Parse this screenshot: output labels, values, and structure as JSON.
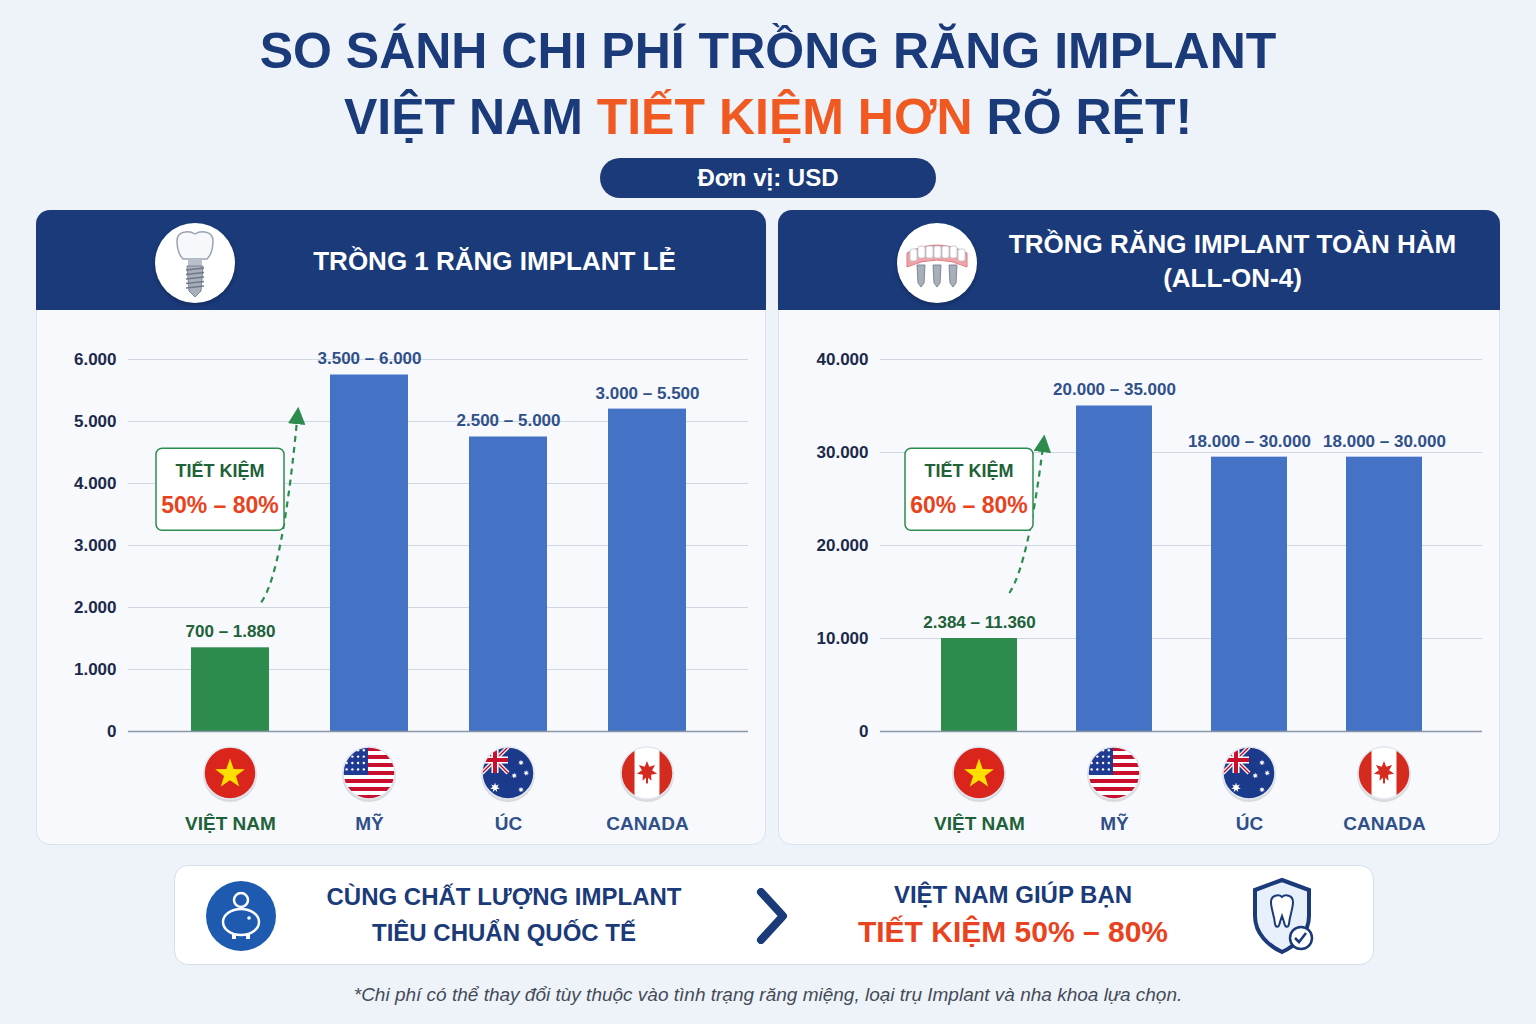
{
  "header": {
    "title": [
      "SO SÁNH CHI PHÍ TRỒNG RĂNG IMPLANT",
      "VIỆT NAM TIẾT KIỆM HƠN RÕ RỆT!"
    ],
    "title_highlight": "TIẾT KIỆM HƠN",
    "unit": "Đơn vị: USD"
  },
  "chart_data": [
    {
      "type": "bar",
      "title": "TRỒNG 1 RĂNG IMPLANT LẺ",
      "categories": [
        "VIỆT NAM",
        "MỸ",
        "ÚC",
        "CANADA"
      ],
      "values": [
        1350,
        5750,
        4750,
        5200
      ],
      "colors": [
        "#2e8b4e",
        "#4472c4",
        "#4472c4",
        "#4472c4"
      ],
      "range_labels": [
        "700 – 1.880",
        "3.500 – 6.000",
        "2.500 – 5.000",
        "3.000 – 5.500"
      ],
      "ylim": [
        0,
        6000
      ],
      "yticks": [
        0,
        {
          "value": 1000,
          "label": "1.000"
        },
        {
          "value": 2000,
          "label": "2.000"
        },
        {
          "value": 3000,
          "label": "3.000"
        },
        {
          "value": 4000,
          "label": "4.000"
        },
        {
          "value": 5000,
          "label": "5.000"
        },
        {
          "value": 6000,
          "label": "6.000"
        }
      ],
      "grid": true,
      "annotation": {
        "text": "TIẾT KIỆM",
        "highlight": "50% – 80%"
      }
    },
    {
      "type": "bar",
      "title": "TRỒNG RĂNG IMPLANT TOÀN HÀM (ALL-ON-4)",
      "categories": [
        "VIỆT NAM",
        "MỸ",
        "ÚC",
        "CANADA"
      ],
      "values": [
        10000,
        35000,
        29500,
        29500
      ],
      "colors": [
        "#2e8b4e",
        "#4472c4",
        "#4472c4",
        "#4472c4"
      ],
      "range_labels": [
        "2.384 – 11.360",
        "20.000 – 35.000",
        "18.000 – 30.000",
        "18.000 – 30.000"
      ],
      "ylim": [
        0,
        40000
      ],
      "yticks": [
        0,
        {
          "value": 10000,
          "label": "10.000"
        },
        {
          "value": 20000,
          "label": "20.000"
        },
        {
          "value": 30000,
          "label": "30.000"
        },
        {
          "value": 40000,
          "label": "40.000"
        }
      ],
      "grid": true,
      "annotation": {
        "text": "TIẾT KIỆM",
        "highlight": "60% – 80%"
      }
    }
  ],
  "banner": {
    "left": [
      "CÙNG CHẤT LƯỢNG IMPLANT",
      "TIÊU CHUẨN QUỐC TẾ"
    ],
    "right": [
      "VIỆT NAM GIÚP BẠN",
      "TIẾT KIỆM 50% – 80%"
    ]
  },
  "footnote": "*Chi phí có thể thay đổi tùy thuộc vào tình trạng răng miệng, loại trụ Implant và nha khoa lựa chọn."
}
